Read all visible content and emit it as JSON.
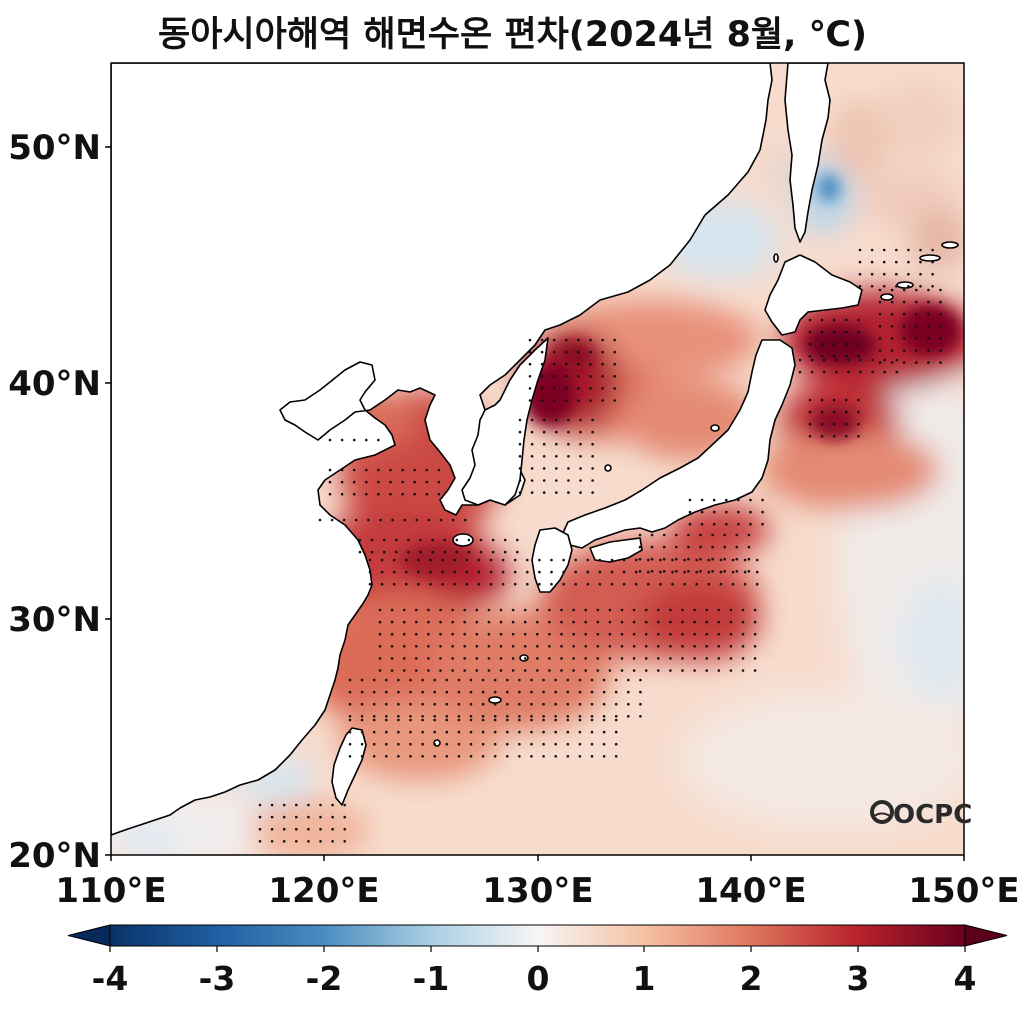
{
  "title": "동아시아해역 해면수온 편차(2024년 8월, ℃)",
  "map": {
    "lon_range": [
      110,
      150
    ],
    "lat_range": [
      20,
      53.5
    ],
    "x_ticks": [
      "110°E",
      "120°E",
      "130°E",
      "140°E",
      "150°E"
    ],
    "y_ticks": [
      "20°N",
      "30°N",
      "40°N",
      "50°N"
    ],
    "stippling": "dots mark significant anomalies",
    "logo": "OCPC"
  },
  "colorbar": {
    "range": [
      -4,
      4
    ],
    "extend": "both",
    "ticks": [
      "-4",
      "-3",
      "-2",
      "-1",
      "0",
      "1",
      "2",
      "3",
      "4"
    ],
    "colors": {
      "neg4": "#0a3268",
      "neg3": "#1f5fa3",
      "neg2": "#4a8cc0",
      "neg1": "#a9cfe3",
      "zero": "#f7f6f5",
      "pos1": "#f5c1a4",
      "pos2": "#df765e",
      "pos3": "#b8222d",
      "pos4": "#6a0020"
    }
  }
}
